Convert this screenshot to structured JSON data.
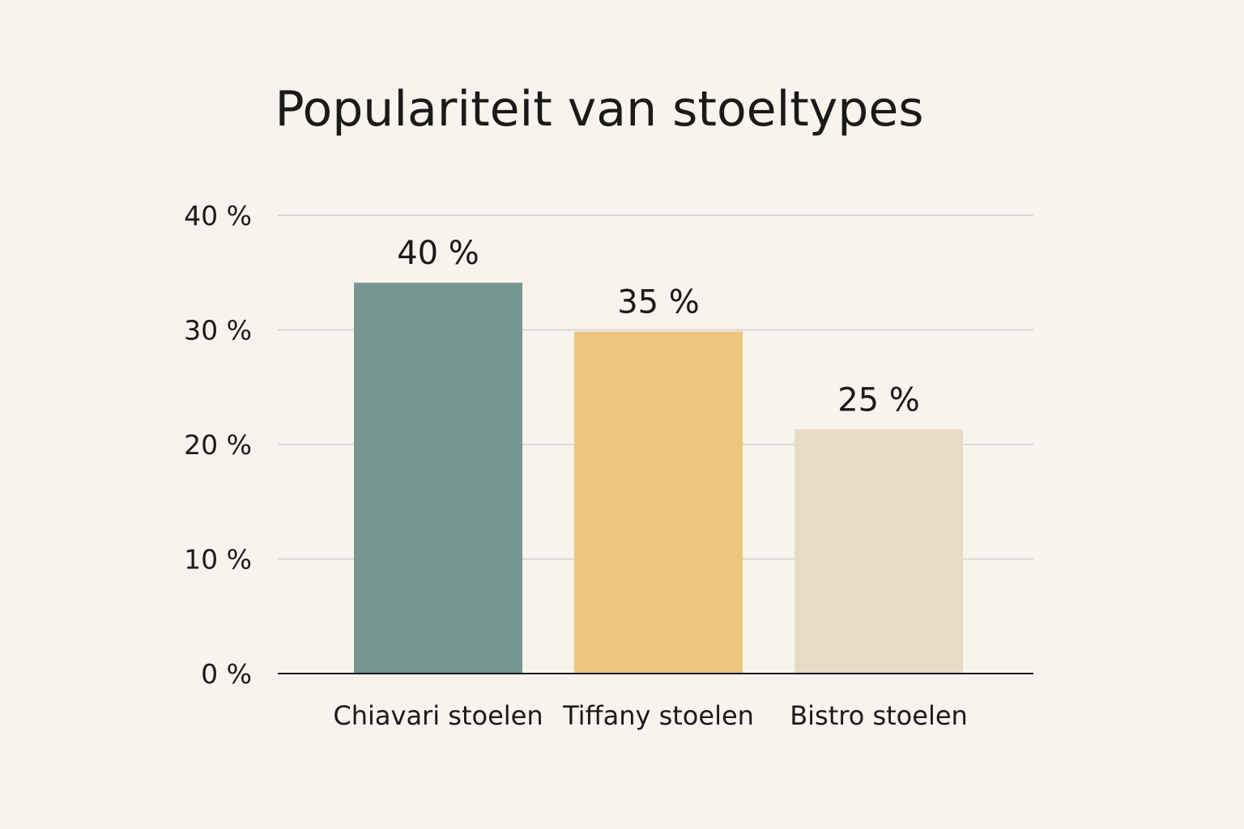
{
  "chart_data": {
    "type": "bar",
    "title": "Populariteit van stoeltypes",
    "xlabel": "",
    "ylabel": "",
    "categories": [
      "Chiavari stoelen",
      "Tiffany stoelen",
      "Bistro stoelen"
    ],
    "values": [
      40,
      35,
      25
    ],
    "data_labels": [
      "40 %",
      "35 %",
      "25 %"
    ],
    "ylim": [
      0,
      40
    ],
    "yticks": [
      {
        "value": 0,
        "label": "0 %"
      },
      {
        "value": 10,
        "label": "10 %"
      },
      {
        "value": 20,
        "label": "20 %"
      },
      {
        "value": 30,
        "label": "30 %"
      },
      {
        "value": 40,
        "label": "40 %"
      }
    ],
    "grid": true,
    "legend": "none",
    "colors": [
      "#76968f",
      "#ecc57f",
      "#e6dbc6"
    ],
    "background": "#f8f3ed"
  }
}
